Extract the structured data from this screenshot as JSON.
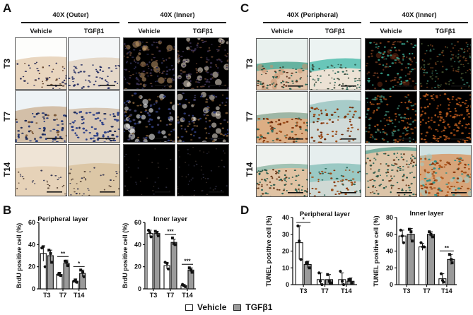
{
  "panels": {
    "A": {
      "letter": "A",
      "groups": [
        "40X (Outer)",
        "40X (Inner)"
      ],
      "columns": [
        "Vehicle",
        "TGFβ1",
        "Vehicle",
        "TGFβ1"
      ],
      "rows": [
        "T3",
        "T7",
        "T14"
      ]
    },
    "B": {
      "letter": "B"
    },
    "C": {
      "letter": "C",
      "groups": [
        "40X (Peripheral)",
        "40X (Inner)"
      ],
      "columns": [
        "Vehicle",
        "TGFβ1",
        "Vehicle",
        "TGFβ1"
      ],
      "rows": [
        "T3",
        "T7",
        "T14"
      ]
    },
    "D": {
      "letter": "D"
    }
  },
  "legend": {
    "items": [
      {
        "label": "Vehicle",
        "color": "#ffffff"
      },
      {
        "label": "TGFβ1",
        "color": "#9a9a9a"
      }
    ]
  },
  "colors": {
    "vehicle_bar": "#ffffff",
    "tgf_bar": "#9a9a9a",
    "axis": "#111111",
    "ihc_brown": "#c9a27a",
    "ihc_blue_nuclei": "#2f3f78",
    "methyl_green": "#3fb3a8",
    "tunel_brown": "#b8621f"
  },
  "chart_data": [
    {
      "id": "B-peripheral",
      "type": "bar",
      "title": "Peripheral layer",
      "xlabel": "",
      "ylabel": "BrdU positive cell (%)",
      "categories": [
        "T3",
        "T7",
        "T14"
      ],
      "ylim": [
        0,
        60
      ],
      "yticks": [
        0,
        20,
        40,
        60
      ],
      "series": [
        {
          "name": "Vehicle",
          "values": [
            32,
            13,
            7
          ],
          "errors": [
            7,
            2,
            2
          ],
          "points": [
            [
              37,
              38,
              20
            ],
            [
              13,
              14,
              12
            ],
            [
              7,
              8,
              6
            ]
          ]
        },
        {
          "name": "TGFβ1",
          "values": [
            30,
            23,
            14
          ],
          "errors": [
            5,
            3,
            3
          ],
          "points": [
            [
              35,
              32,
              24
            ],
            [
              25,
              24,
              21
            ],
            [
              17,
              15,
              11
            ]
          ]
        }
      ],
      "significance": [
        {
          "category": "T7",
          "label": "**"
        },
        {
          "category": "T14",
          "label": "*"
        }
      ],
      "grid": false,
      "legend_position": "bottom-center"
    },
    {
      "id": "B-inner",
      "type": "bar",
      "title": "Inner layer",
      "xlabel": "",
      "ylabel": "BrdU positive cell (%)",
      "categories": [
        "T3",
        "T7",
        "T14"
      ],
      "ylim": [
        0,
        60
      ],
      "yticks": [
        0,
        20,
        40,
        60
      ],
      "series": [
        {
          "name": "Vehicle",
          "values": [
            50,
            21,
            3
          ],
          "errors": [
            3,
            3,
            1
          ],
          "points": [
            [
              53,
              51,
              47
            ],
            [
              24,
              23,
              18
            ],
            [
              4,
              3,
              2
            ]
          ]
        },
        {
          "name": "TGFβ1",
          "values": [
            50,
            42,
            17
          ],
          "errors": [
            2,
            3,
            2
          ],
          "points": [
            [
              52,
              51,
              48
            ],
            [
              46,
              41,
              40
            ],
            [
              19,
              17,
              15
            ]
          ]
        }
      ],
      "significance": [
        {
          "category": "T7",
          "label": "***"
        },
        {
          "category": "T14",
          "label": "***"
        }
      ],
      "grid": false
    },
    {
      "id": "D-peripheral",
      "type": "bar",
      "title": "Peripheral layer",
      "xlabel": "",
      "ylabel": "TUNEL positive cell (%)",
      "categories": [
        "T3",
        "T7",
        "T14"
      ],
      "ylim": [
        0,
        40
      ],
      "yticks": [
        0,
        10,
        20,
        30,
        40
      ],
      "series": [
        {
          "name": "Vehicle",
          "values": [
            25,
            3,
            3
          ],
          "errors": [
            10,
            4,
            4
          ],
          "points": [
            [
              35,
              26,
              15
            ],
            [
              7,
              2,
              0
            ],
            [
              8,
              2,
              0
            ]
          ]
        },
        {
          "name": "TGFβ1",
          "values": [
            12,
            3,
            2
          ],
          "errors": [
            2,
            3,
            2
          ],
          "points": [
            [
              13,
              13,
              10
            ],
            [
              6,
              2,
              1
            ],
            [
              3,
              3,
              1
            ]
          ]
        }
      ],
      "significance": [
        {
          "category": "T3",
          "label": "*"
        }
      ],
      "grid": false
    },
    {
      "id": "D-inner",
      "type": "bar",
      "title": "Inner layer",
      "xlabel": "",
      "ylabel": "TUNEL positive cell (%)",
      "categories": [
        "T3",
        "T7",
        "T14"
      ],
      "ylim": [
        0,
        80
      ],
      "yticks": [
        0,
        20,
        40,
        60,
        80
      ],
      "series": [
        {
          "name": "Vehicle",
          "values": [
            58,
            45,
            7
          ],
          "errors": [
            7,
            4,
            6
          ],
          "points": [
            [
              65,
              58,
              50
            ],
            [
              50,
              45,
              45
            ],
            [
              13,
              5,
              3
            ]
          ]
        },
        {
          "name": "TGFβ1",
          "values": [
            60,
            60,
            30
          ],
          "errors": [
            7,
            3,
            6
          ],
          "points": [
            [
              66,
              63,
              52
            ],
            [
              63,
              60,
              57
            ],
            [
              36,
              30,
              26
            ]
          ]
        }
      ],
      "significance": [
        {
          "category": "T14",
          "label": "**"
        }
      ],
      "grid": false
    }
  ]
}
